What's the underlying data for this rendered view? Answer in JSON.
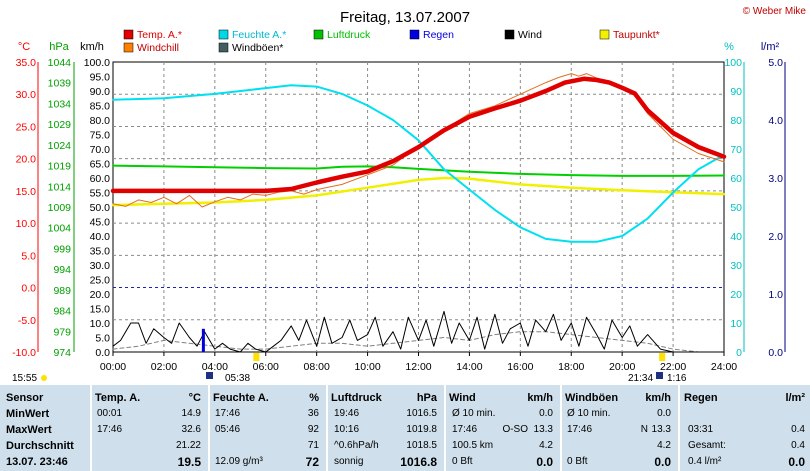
{
  "header": {
    "title": "Freitag, 13.07.2007",
    "copyright": "© Weber Mike"
  },
  "axes": {
    "temp": {
      "unit": "°C",
      "ticks": [
        "35.0",
        "30.0",
        "25.0",
        "20.0",
        "15.0",
        "10.0",
        "5.0",
        "0.0",
        "-5.0",
        "-10.0"
      ],
      "color": "#ff0000"
    },
    "pressure": {
      "unit": "hPa",
      "ticks": [
        "1044",
        "1039",
        "1034",
        "1029",
        "1024",
        "1019",
        "1014",
        "1009",
        "1004",
        "999",
        "994",
        "989",
        "984",
        "979",
        "974"
      ],
      "color": "#00a000"
    },
    "wind": {
      "unit": "km/h",
      "ticks": [
        "100.0",
        "95.0",
        "90.0",
        "85.0",
        "80.0",
        "75.0",
        "70.0",
        "65.0",
        "60.0",
        "55.0",
        "50.0",
        "45.0",
        "40.0",
        "35.0",
        "30.0",
        "25.0",
        "20.0",
        "15.0",
        "10.0",
        "5.0",
        "0.0"
      ]
    },
    "humidity": {
      "unit": "%",
      "ticks": [
        "100",
        "90",
        "80",
        "70",
        "60",
        "50",
        "40",
        "30",
        "20",
        "10",
        "0"
      ],
      "color": "#00c0c0"
    },
    "rain": {
      "unit": "l/m²",
      "ticks": [
        "5.0",
        "4.0",
        "3.0",
        "2.0",
        "1.0",
        "0.0"
      ],
      "color": "#000080"
    },
    "time": {
      "ticks": [
        "00:00",
        "02:00",
        "04:00",
        "06:00",
        "08:00",
        "10:00",
        "12:00",
        "14:00",
        "16:00",
        "18:00",
        "20:00",
        "22:00",
        "24:00"
      ]
    }
  },
  "legend": [
    {
      "label": "Temp. A.*",
      "color": "#e00000"
    },
    {
      "label": "Feuchte A.*",
      "color": "#00d8e8"
    },
    {
      "label": "Luftdruck",
      "color": "#00c000"
    },
    {
      "label": "Regen",
      "color": "#0000e0"
    },
    {
      "label": "Wind",
      "color": "#000000"
    },
    {
      "label": "Taupunkt*",
      "color": "#f0f000"
    },
    {
      "label": "Windchill",
      "color": "#ff8000"
    },
    {
      "label": "Windböen*",
      "color": "#406060"
    }
  ],
  "sun": {
    "sunrise": "05:38",
    "sunset": "21:34",
    "moonrise": "15:55",
    "moonset": "1:16"
  },
  "chart_data": {
    "type": "line",
    "title": "Freitag, 13.07.2007",
    "x_unit": "hours",
    "xlim": [
      0,
      24
    ],
    "series": [
      {
        "name": "Temp. A.*",
        "axis": "temp",
        "x": [
          0,
          2,
          4,
          6,
          7,
          8,
          9,
          10,
          11,
          12,
          13,
          14,
          15,
          16,
          17,
          17.75,
          18.5,
          19,
          19.5,
          20,
          20.5,
          21,
          22,
          23,
          24
        ],
        "values": [
          15.0,
          15.0,
          15.0,
          15.0,
          15.3,
          16.3,
          17.2,
          18.0,
          19.6,
          21.8,
          24.4,
          26.5,
          27.8,
          29.0,
          30.5,
          31.8,
          32.4,
          32.2,
          31.8,
          31.0,
          30.1,
          27.5,
          24.0,
          21.8,
          20.3
        ]
      },
      {
        "name": "Windchill",
        "axis": "temp",
        "x": [
          0,
          0.5,
          1,
          1.5,
          2,
          2.5,
          3,
          3.5,
          4,
          4.5,
          5,
          5.5,
          6,
          6.5,
          7,
          7.5,
          8,
          9,
          10,
          11,
          12,
          13,
          14,
          15,
          16,
          17,
          17.5,
          18,
          18.3,
          18.6,
          19,
          19.5,
          20,
          20.5,
          21,
          22,
          23,
          24
        ],
        "values": [
          13.0,
          12.6,
          13.6,
          13.2,
          14.0,
          13.0,
          14.3,
          12.5,
          13.3,
          14.0,
          13.6,
          14.5,
          14.3,
          14.8,
          15.0,
          14.5,
          15.2,
          16.0,
          17.5,
          19.0,
          22.0,
          24.5,
          27.0,
          28.2,
          30.0,
          31.8,
          32.6,
          33.2,
          32.8,
          33.2,
          32.5,
          32.0,
          31.2,
          29.8,
          27.0,
          23.0,
          20.8,
          19.5
        ]
      },
      {
        "name": "Feuchte A.*",
        "axis": "humidity",
        "x": [
          0,
          2,
          4,
          6,
          7,
          8,
          9,
          10,
          11,
          12,
          13,
          14,
          15,
          16,
          17,
          18,
          19,
          20,
          21,
          22,
          23,
          24
        ],
        "values": [
          87,
          87.5,
          89,
          91,
          92,
          91.5,
          89,
          85,
          80,
          73,
          63,
          56,
          49,
          43,
          39,
          38,
          38,
          40,
          46,
          55,
          63,
          68
        ]
      },
      {
        "name": "Taupunkt*",
        "axis": "temp",
        "x": [
          0,
          2,
          4,
          6,
          8,
          10,
          12,
          13,
          14,
          16,
          18,
          20,
          22,
          24
        ],
        "values": [
          12.8,
          13.0,
          13.2,
          13.6,
          14.3,
          15.5,
          16.7,
          17.0,
          16.9,
          16.0,
          15.5,
          15.1,
          14.8,
          14.5
        ]
      },
      {
        "name": "Luftdruck",
        "axis": "pressure",
        "x": [
          0,
          2,
          4,
          6,
          8,
          9,
          10,
          11,
          12,
          14,
          16,
          18,
          20,
          22,
          24
        ],
        "values": [
          1019.0,
          1018.8,
          1018.6,
          1018.4,
          1018.3,
          1018.7,
          1018.8,
          1018.6,
          1018.2,
          1017.5,
          1017.0,
          1016.7,
          1016.5,
          1016.5,
          1016.6
        ]
      },
      {
        "name": "Wind",
        "axis": "wind",
        "x": [
          0,
          0.3,
          0.7,
          1,
          1.3,
          1.6,
          2,
          2.3,
          2.6,
          3,
          3.3,
          3.6,
          4,
          4.3,
          4.6,
          5,
          5.3,
          5.6,
          6,
          6.3,
          6.6,
          7,
          7.3,
          7.6,
          8,
          8.3,
          8.6,
          9,
          9.3,
          9.6,
          10,
          10.3,
          10.6,
          11,
          11.3,
          11.6,
          12,
          12.3,
          12.6,
          13,
          13.3,
          13.6,
          14,
          14.3,
          14.6,
          15,
          15.3,
          15.6,
          16,
          16.3,
          16.6,
          17,
          17.3,
          17.6,
          18,
          18.3,
          18.6,
          19,
          19.3,
          19.6,
          20,
          20.3,
          20.6,
          21,
          21.5,
          22,
          22.5,
          23,
          23.5,
          24
        ],
        "values": [
          2,
          4,
          10,
          10,
          3,
          8,
          5,
          3,
          10,
          5,
          2,
          7,
          1,
          3,
          1,
          0,
          3,
          1,
          0,
          2,
          4,
          9,
          4,
          11,
          2,
          12,
          3,
          5,
          11,
          4,
          6,
          12,
          2,
          7,
          1,
          12,
          4,
          11,
          2,
          14,
          3,
          10,
          4,
          12,
          1,
          13,
          3,
          8,
          10,
          2,
          11,
          7,
          13,
          4,
          10,
          2,
          12,
          6,
          1,
          11,
          5,
          9,
          2,
          6,
          1,
          0,
          0,
          0,
          0,
          0
        ]
      },
      {
        "name": "Windböen*",
        "axis": "wind",
        "x": [
          0,
          1,
          2,
          3,
          4,
          5,
          6,
          7,
          8,
          9,
          10,
          11,
          12,
          13,
          14,
          15,
          16,
          17,
          18,
          19,
          20,
          21,
          22,
          23,
          24
        ],
        "values": [
          1,
          2,
          4,
          3,
          2,
          1,
          1,
          2,
          3,
          3,
          2,
          3,
          4,
          5,
          4,
          6,
          7,
          7,
          6,
          5,
          4,
          3,
          1,
          0,
          0
        ]
      },
      {
        "name": "Regen",
        "axis": "rain",
        "type": "bar",
        "x": [
          3.55
        ],
        "values": [
          0.4
        ]
      }
    ]
  },
  "stats": {
    "headers": {
      "sensor": "Sensor",
      "temp": "Temp. A.",
      "temp_unit": "°C",
      "hum": "Feuchte A.",
      "hum_unit": "%",
      "press": "Luftdruck",
      "press_unit": "hPa",
      "wind": "Wind",
      "wind_unit": "km/h",
      "gust": "Windböen",
      "gust_unit": "km/h",
      "rain": "Regen",
      "rain_unit": "l/m²"
    },
    "rows": [
      {
        "label": "MinWert",
        "t_time": "00:01",
        "t_val": "14.9",
        "h_time": "17:46",
        "h_val": "36",
        "p_time": "19:46",
        "p_val": "1016.5",
        "w_info": "Ø 10 min.",
        "w_dir": "",
        "w_val": "0.0",
        "g_info": "Ø 10 min.",
        "g_dir": "",
        "g_val": "0.0",
        "r_info": "",
        "r_val": ""
      },
      {
        "label": "MaxWert",
        "t_time": "17:46",
        "t_val": "32.6",
        "h_time": "05:46",
        "h_val": "92",
        "p_time": "10:16",
        "p_val": "1019.8",
        "w_info": "17:46",
        "w_dir": "O-SO",
        "w_val": "13.3",
        "g_info": "17:46",
        "g_dir": "N",
        "g_val": "13.3",
        "r_info": "03:31",
        "r_val": "0.4"
      },
      {
        "label": "Durchschnitt",
        "t_time": "",
        "t_val": "21.22",
        "h_time": "",
        "h_val": "71",
        "p_time": "^0.6hPa/h",
        "p_val": "1018.5",
        "w_info": "100.5 km",
        "w_dir": "",
        "w_val": "4.2",
        "g_info": "",
        "g_dir": "",
        "g_val": "4.2",
        "r_info": "Gesamt:",
        "r_val": "0.4"
      },
      {
        "label": "13.07. 23:46",
        "t_time": "",
        "t_val": "19.5",
        "h_time": "12.09 g/m³",
        "h_val": "72",
        "p_time": "sonnig",
        "p_val": "1016.8",
        "w_info": "0 Bft",
        "w_dir": "",
        "w_val": "0.0",
        "g_info": "0 Bft",
        "g_dir": "",
        "g_val": "0.0",
        "r_info": "0.4 l/m²",
        "r_val": "0.0"
      }
    ]
  }
}
